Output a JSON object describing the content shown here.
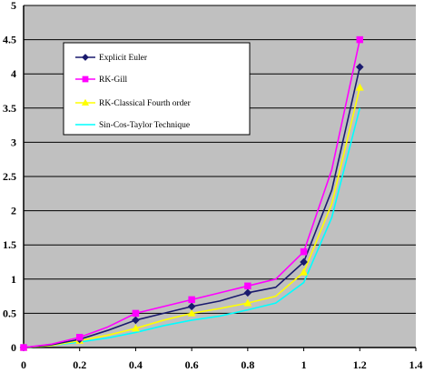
{
  "chart_data": {
    "type": "line",
    "title": "",
    "xlabel": "",
    "ylabel": "",
    "xlim": [
      0,
      1.4
    ],
    "ylim": [
      0,
      5
    ],
    "x_ticks": [
      0,
      0.2,
      0.4,
      0.6,
      0.8,
      1,
      1.2,
      1.4
    ],
    "x_tick_labels": [
      "0",
      "0.2",
      "0.4",
      "0.6",
      "0.8",
      "1",
      "1.2",
      "1.4"
    ],
    "y_ticks": [
      0,
      0.5,
      1,
      1.5,
      2,
      2.5,
      3,
      3.5,
      4,
      4.5,
      5
    ],
    "y_tick_labels": [
      "0",
      "0.5",
      "1",
      "1.5",
      "2",
      "2.5",
      "3",
      "3.5",
      "4",
      "4.5",
      "5"
    ],
    "grid": "horizontal",
    "plot_background": "#c0c0c0",
    "legend_position": "upper-left",
    "series": [
      {
        "name": "Explicit Euler",
        "color": "#1a1a6e",
        "marker": "diamond",
        "x": [
          0,
          0.2,
          0.4,
          0.6,
          0.8,
          1,
          1.2
        ],
        "y": [
          0,
          0.12,
          0.4,
          0.6,
          0.8,
          1.25,
          4.1
        ],
        "curve_points": [
          [
            0,
            0
          ],
          [
            0.1,
            0.04
          ],
          [
            0.2,
            0.12
          ],
          [
            0.3,
            0.25
          ],
          [
            0.4,
            0.4
          ],
          [
            0.5,
            0.5
          ],
          [
            0.6,
            0.6
          ],
          [
            0.7,
            0.68
          ],
          [
            0.8,
            0.8
          ],
          [
            0.9,
            0.88
          ],
          [
            1,
            1.25
          ],
          [
            1.1,
            2.3
          ],
          [
            1.2,
            4.1
          ]
        ]
      },
      {
        "name": "RK-Gill",
        "color": "#ff00ff",
        "marker": "square",
        "x": [
          0,
          0.2,
          0.4,
          0.6,
          0.8,
          1,
          1.2
        ],
        "y": [
          0,
          0.15,
          0.5,
          0.7,
          0.9,
          1.4,
          4.5
        ],
        "curve_points": [
          [
            0,
            0
          ],
          [
            0.1,
            0.05
          ],
          [
            0.2,
            0.15
          ],
          [
            0.3,
            0.3
          ],
          [
            0.4,
            0.5
          ],
          [
            0.5,
            0.6
          ],
          [
            0.6,
            0.7
          ],
          [
            0.7,
            0.8
          ],
          [
            0.8,
            0.9
          ],
          [
            0.9,
            1.0
          ],
          [
            1,
            1.4
          ],
          [
            1.1,
            2.6
          ],
          [
            1.2,
            4.5
          ]
        ]
      },
      {
        "name": "RK-Classical Fourth order",
        "color": "#ffff00",
        "marker": "triangle",
        "x": [
          0,
          0.2,
          0.4,
          0.6,
          0.8,
          1,
          1.2
        ],
        "y": [
          0,
          0.1,
          0.28,
          0.5,
          0.65,
          1.1,
          3.8
        ],
        "curve_points": [
          [
            0,
            0
          ],
          [
            0.1,
            0.03
          ],
          [
            0.2,
            0.1
          ],
          [
            0.3,
            0.18
          ],
          [
            0.4,
            0.28
          ],
          [
            0.5,
            0.4
          ],
          [
            0.6,
            0.5
          ],
          [
            0.7,
            0.57
          ],
          [
            0.8,
            0.65
          ],
          [
            0.9,
            0.75
          ],
          [
            1,
            1.1
          ],
          [
            1.1,
            2.1
          ],
          [
            1.2,
            3.8
          ]
        ]
      },
      {
        "name": "Sin-Cos-Taylor Technique",
        "color": "#00ffff",
        "marker": "none",
        "x": [
          0,
          0.2,
          0.4,
          0.6,
          0.8,
          1,
          1.2
        ],
        "y": [
          0,
          0.08,
          0.22,
          0.4,
          0.55,
          0.95,
          3.5
        ],
        "curve_points": [
          [
            0,
            0
          ],
          [
            0.1,
            0.03
          ],
          [
            0.2,
            0.08
          ],
          [
            0.3,
            0.14
          ],
          [
            0.4,
            0.22
          ],
          [
            0.5,
            0.32
          ],
          [
            0.6,
            0.4
          ],
          [
            0.7,
            0.46
          ],
          [
            0.8,
            0.55
          ],
          [
            0.9,
            0.65
          ],
          [
            1,
            0.95
          ],
          [
            1.1,
            1.9
          ],
          [
            1.2,
            3.5
          ]
        ]
      }
    ]
  }
}
